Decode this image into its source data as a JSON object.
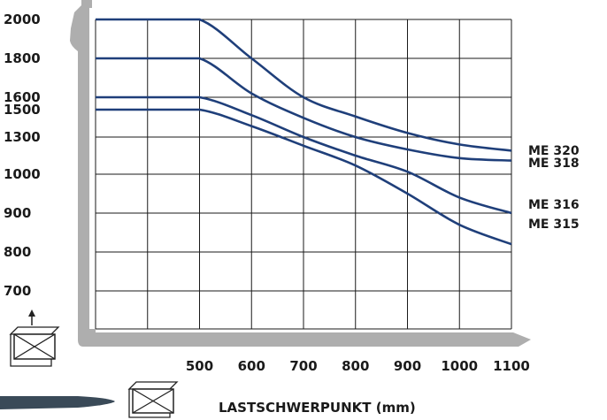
{
  "chart_data": {
    "type": "line",
    "title": "",
    "xlabel": "LASTSCHWERPUNKT (mm)",
    "ylabel": "",
    "x_ticks": [
      500,
      600,
      700,
      800,
      900,
      1000,
      1100
    ],
    "y_ticks": [
      2000,
      1800,
      1600,
      1500,
      1300,
      1000,
      900,
      800,
      700
    ],
    "grid": true,
    "line_color": "#1f3f7a",
    "series": [
      {
        "name": "ME 320",
        "x": [
          300,
          500,
          600,
          700,
          800,
          900,
          1000,
          1100
        ],
        "y": [
          2000,
          2000,
          1800,
          1600,
          1450,
          1330,
          1240,
          1190
        ]
      },
      {
        "name": "ME 318",
        "x": [
          300,
          500,
          600,
          700,
          800,
          900,
          1000,
          1100
        ],
        "y": [
          1800,
          1800,
          1620,
          1440,
          1300,
          1200,
          1130,
          1110
        ]
      },
      {
        "name": "ME 316",
        "x": [
          300,
          500,
          600,
          700,
          800,
          900,
          1000,
          1100
        ],
        "y": [
          1600,
          1600,
          1460,
          1300,
          1150,
          1020,
          940,
          900
        ]
      },
      {
        "name": "ME 315",
        "x": [
          300,
          500,
          600,
          700,
          800,
          900,
          1000,
          1100
        ],
        "y": [
          1500,
          1500,
          1380,
          1230,
          1070,
          950,
          870,
          820
        ]
      }
    ]
  }
}
